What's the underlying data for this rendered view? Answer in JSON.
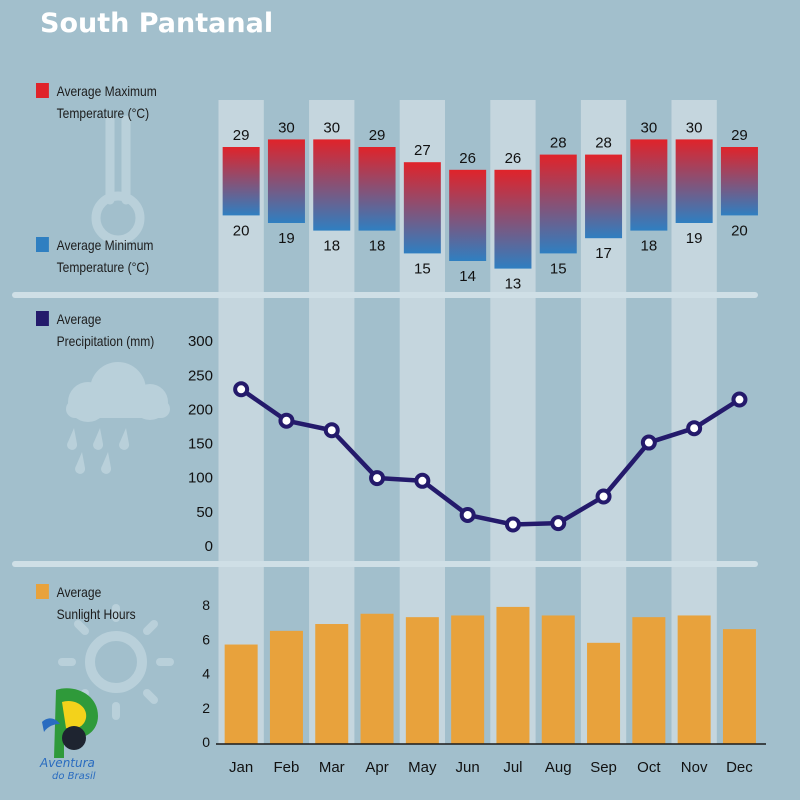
{
  "title": "South Pantanal",
  "legend": {
    "max_line1": "Average Maximum",
    "max_line2": "Temperature (°C)",
    "min_line1": "Average Minimum",
    "min_line2": "Temperature (°C)",
    "precip_line1": "Average",
    "precip_line2": "Precipitation (mm)",
    "sun_line1": "Average",
    "sun_line2": "Sunlight Hours"
  },
  "colors": {
    "background": "#a2bfcc",
    "max_temp": "#e0232a",
    "min_temp": "#2f7fc1",
    "precipitation": "#241a6b",
    "sunlight": "#e8a23c",
    "column_highlight": "#c5d6de"
  },
  "icons": [
    "thermometer-icon",
    "rain-cloud-icon",
    "sun-icon"
  ],
  "logo": {
    "line1": "Aventura",
    "line2": "do Brasil"
  },
  "chart_data": [
    {
      "type": "bar",
      "name": "temperature",
      "categories": [
        "Jan",
        "Feb",
        "Mar",
        "Apr",
        "May",
        "Jun",
        "Jul",
        "Aug",
        "Sep",
        "Oct",
        "Nov",
        "Dec"
      ],
      "series": [
        {
          "name": "Average Maximum Temperature (°C)",
          "values": [
            29,
            30,
            30,
            29,
            27,
            26,
            26,
            28,
            28,
            30,
            30,
            29
          ]
        },
        {
          "name": "Average Minimum Temperature (°C)",
          "values": [
            20,
            19,
            18,
            18,
            15,
            14,
            13,
            15,
            17,
            18,
            19,
            20
          ]
        }
      ]
    },
    {
      "type": "line",
      "name": "precipitation",
      "categories": [
        "Jan",
        "Feb",
        "Mar",
        "Apr",
        "May",
        "Jun",
        "Jul",
        "Aug",
        "Sep",
        "Oct",
        "Nov",
        "Dec"
      ],
      "series": [
        {
          "name": "Average Precipitation (mm)",
          "values": [
            228,
            182,
            168,
            98,
            94,
            44,
            30,
            32,
            71,
            150,
            171,
            213
          ]
        }
      ],
      "ylim": [
        0,
        300
      ],
      "yticks": [
        0,
        50,
        100,
        150,
        200,
        250,
        300
      ]
    },
    {
      "type": "bar",
      "name": "sunlight",
      "categories": [
        "Jan",
        "Feb",
        "Mar",
        "Apr",
        "May",
        "Jun",
        "Jul",
        "Aug",
        "Sep",
        "Oct",
        "Nov",
        "Dec"
      ],
      "series": [
        {
          "name": "Average Sunlight Hours",
          "values": [
            5.7,
            6.5,
            6.9,
            7.5,
            7.3,
            7.4,
            7.9,
            7.4,
            5.8,
            7.3,
            7.4,
            6.6
          ]
        }
      ],
      "ylim": [
        0,
        8
      ],
      "yticks": [
        0,
        2,
        4,
        6,
        8
      ]
    }
  ]
}
